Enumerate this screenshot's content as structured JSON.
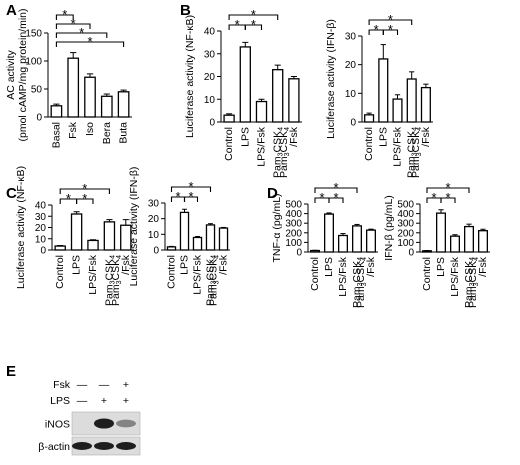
{
  "panels": [
    "A",
    "B",
    "C",
    "D",
    "E"
  ],
  "chart_data": [
    {
      "id": "A",
      "type": "bar",
      "ylabel_lines": [
        "AC activity",
        "(pmol cAMP/mg protein/min)"
      ],
      "categories": [
        "Basal",
        "Fsk",
        "Iso",
        "Bera",
        "Buta"
      ],
      "values": [
        20,
        105,
        71,
        37,
        45
      ],
      "errors": [
        3,
        10,
        6,
        4,
        3
      ],
      "ylim": [
        0,
        150
      ],
      "yticks": [
        0,
        50,
        100,
        150
      ],
      "significance": [
        {
          "from": 0,
          "to": 1,
          "label": "*"
        },
        {
          "from": 0,
          "to": 2,
          "label": "*"
        },
        {
          "from": 0,
          "to": 3,
          "label": "*"
        },
        {
          "from": 0,
          "to": 4,
          "label": "*"
        }
      ]
    },
    {
      "id": "B1",
      "type": "bar",
      "ylabel_lines": [
        "Luciferase activity (NF-κB)"
      ],
      "categories": [
        "Control",
        "LPS",
        "LPS/Fsk",
        [
          "Pam3CSK4"
        ],
        [
          "Pam3CSK4",
          "/Fsk"
        ]
      ],
      "values": [
        3,
        33,
        9,
        23,
        19
      ],
      "errors": [
        0.6,
        2,
        1,
        2,
        1
      ],
      "ylim": [
        0,
        40
      ],
      "yticks": [
        0,
        10,
        20,
        30,
        40
      ],
      "significance": [
        {
          "from": 0,
          "to": 1,
          "label": "*"
        },
        {
          "from": 1,
          "to": 2,
          "label": "*"
        },
        {
          "from": 0,
          "to": 3,
          "label": "*"
        }
      ]
    },
    {
      "id": "B2",
      "type": "bar",
      "ylabel_lines": [
        "Luciferase activity (IFN-β)"
      ],
      "categories": [
        "Control",
        "LPS",
        "LPS/Fsk",
        [
          "Pam3CSK4"
        ],
        [
          "Pam3CSK4",
          "/Fsk"
        ]
      ],
      "values": [
        2.5,
        22,
        8,
        15,
        12
      ],
      "errors": [
        0.6,
        5,
        1.5,
        2.5,
        1.2
      ],
      "ylim": [
        0,
        30
      ],
      "yticks": [
        0,
        10,
        20,
        30
      ],
      "significance": [
        {
          "from": 0,
          "to": 1,
          "label": "*"
        },
        {
          "from": 1,
          "to": 2,
          "label": "*"
        },
        {
          "from": 0,
          "to": 3,
          "label": "*"
        }
      ]
    },
    {
      "id": "C1",
      "type": "bar",
      "ylabel_lines": [
        "Luciferase activity (NF-κB)"
      ],
      "categories": [
        "Control",
        "LPS",
        "LPS/Fsk",
        [
          "Pam3CSK4"
        ],
        [
          "Pam3CSK4",
          "/Fsk"
        ]
      ],
      "values": [
        3.5,
        32,
        8.5,
        25,
        22
      ],
      "errors": [
        0.5,
        2,
        0.6,
        2,
        5
      ],
      "ylim": [
        0,
        40
      ],
      "yticks": [
        0,
        10,
        20,
        30,
        40
      ],
      "significance": [
        {
          "from": 0,
          "to": 1,
          "label": "*"
        },
        {
          "from": 1,
          "to": 2,
          "label": "*"
        },
        {
          "from": 0,
          "to": 3,
          "label": "*"
        }
      ]
    },
    {
      "id": "C2",
      "type": "bar",
      "ylabel_lines": [
        "Luciferase activity (IFN-β)"
      ],
      "categories": [
        "Control",
        "LPS",
        "LPS/Fsk",
        [
          "Pam3CSK4"
        ],
        [
          "Pam3CSK4",
          "/Fsk"
        ]
      ],
      "values": [
        2,
        24,
        8,
        16,
        14
      ],
      "errors": [
        0.3,
        2,
        0.6,
        0.8,
        0.4
      ],
      "ylim": [
        0,
        30
      ],
      "yticks": [
        0,
        10,
        20,
        30
      ],
      "significance": [
        {
          "from": 0,
          "to": 1,
          "label": "*"
        },
        {
          "from": 1,
          "to": 2,
          "label": "*"
        },
        {
          "from": 0,
          "to": 3,
          "label": "*"
        }
      ]
    },
    {
      "id": "D1",
      "type": "bar",
      "ylabel_lines": [
        "TNF-α (pg/mL)"
      ],
      "categories": [
        "Control",
        "LPS",
        "LPS/Fsk",
        [
          "Pam3CSK4"
        ],
        [
          "Pam3CSK4",
          "/Fsk"
        ]
      ],
      "values": [
        15,
        395,
        172,
        272,
        228
      ],
      "errors": [
        3,
        12,
        20,
        15,
        10
      ],
      "ylim": [
        0,
        500
      ],
      "yticks": [
        0,
        100,
        200,
        300,
        400,
        500
      ],
      "significance": [
        {
          "from": 0,
          "to": 1,
          "label": "*"
        },
        {
          "from": 1,
          "to": 2,
          "label": "*"
        },
        {
          "from": 0,
          "to": 3,
          "label": "*"
        }
      ]
    },
    {
      "id": "D2",
      "type": "bar",
      "ylabel_lines": [
        "IFN-β (pg/mL)"
      ],
      "categories": [
        "Control",
        "LPS",
        "LPS/Fsk",
        [
          "Pam3CSK4"
        ],
        [
          "Pam3CSK4",
          "/Fsk"
        ]
      ],
      "values": [
        12,
        405,
        165,
        265,
        222
      ],
      "errors": [
        3,
        35,
        15,
        25,
        15
      ],
      "ylim": [
        0,
        500
      ],
      "yticks": [
        0,
        100,
        200,
        300,
        400,
        500
      ],
      "significance": [
        {
          "from": 0,
          "to": 1,
          "label": "*"
        },
        {
          "from": 1,
          "to": 2,
          "label": "*"
        },
        {
          "from": 0,
          "to": 3,
          "label": "*"
        }
      ]
    }
  ],
  "blot": {
    "rows": [
      {
        "label": "Fsk",
        "signs": [
          "—",
          "—",
          "+"
        ]
      },
      {
        "label": "LPS",
        "signs": [
          "—",
          "+",
          "+"
        ]
      }
    ],
    "bands": [
      {
        "label": "iNOS",
        "intensity": [
          0,
          1,
          0.4
        ]
      },
      {
        "label": "β-actin",
        "intensity": [
          1,
          1,
          1
        ]
      }
    ]
  }
}
